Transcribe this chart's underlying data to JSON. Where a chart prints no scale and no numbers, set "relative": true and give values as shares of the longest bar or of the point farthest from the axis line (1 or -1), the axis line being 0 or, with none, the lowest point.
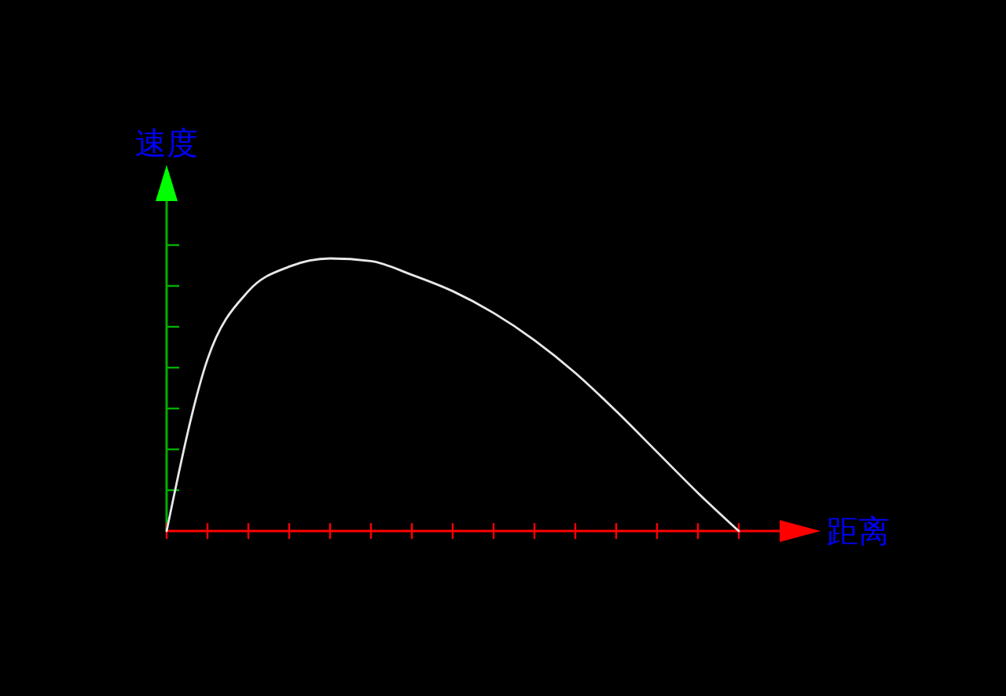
{
  "chart_data": {
    "type": "line",
    "xlabel": "距离",
    "ylabel": "速度",
    "relative": true,
    "grid": false,
    "categories": [
      null,
      null,
      null,
      null,
      null,
      null,
      null,
      null,
      null,
      null,
      null,
      null,
      null,
      null,
      null
    ],
    "series": [
      {
        "color": "#e8e8e8",
        "values": [
          0,
          0.63,
          0.88,
          0.97,
          1.0,
          0.99,
          0.94,
          0.88,
          0.8,
          0.7,
          0.58,
          0.44,
          0.29,
          0.14,
          0
        ]
      }
    ]
  }
}
